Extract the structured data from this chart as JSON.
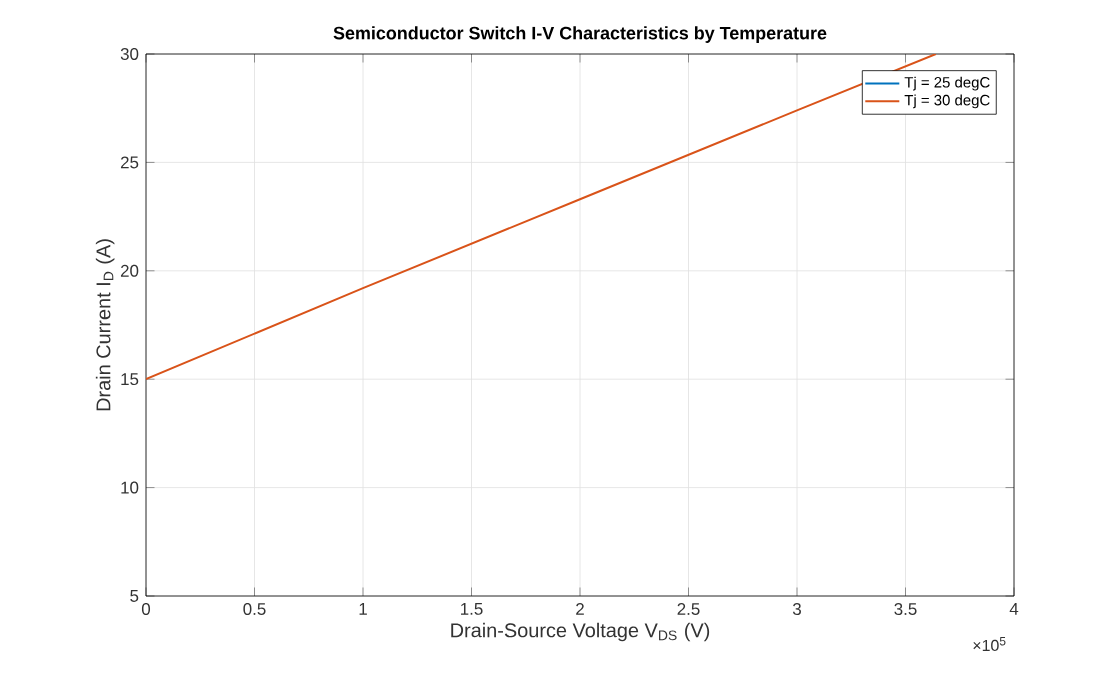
{
  "chart_data": {
    "type": "line",
    "title": "Semiconductor Switch I-V Characteristics by Temperature",
    "xlabel": "Drain-Source  Voltage  V$_{DS}$  (V)",
    "ylabel": "Drain  Current  I$_{D}$  (A)",
    "series": [
      {
        "name": "Tj = 25 degC",
        "color": "#0072bd"
      },
      {
        "name": "Tj = 30 degC",
        "color": "#d95319",
        "x": [
          0,
          1,
          2,
          3,
          3.64
        ],
        "values": [
          15,
          19.2,
          23.3,
          27.4,
          30
        ]
      }
    ],
    "xlim": [
      0,
      4
    ],
    "ylim": [
      5,
      30
    ],
    "xticks": [
      0,
      0.5,
      1,
      1.5,
      2,
      2.5,
      3,
      3.5,
      4
    ],
    "yticks": [
      5,
      10,
      15,
      20,
      25,
      30
    ],
    "annotations": [
      "×10$^{5}$"
    ],
    "grid": true,
    "legend": "top right",
    "line_style": "solid",
    "marker": "none"
  }
}
